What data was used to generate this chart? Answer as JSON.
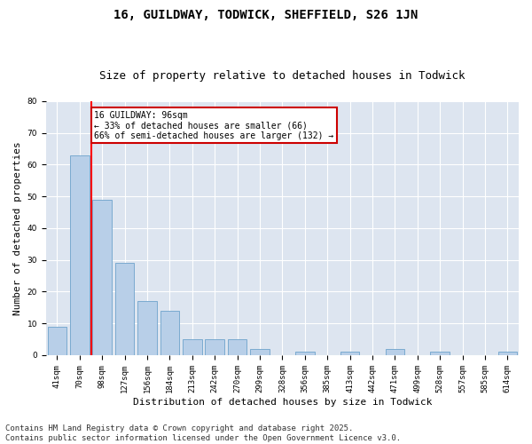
{
  "title": "16, GUILDWAY, TODWICK, SHEFFIELD, S26 1JN",
  "subtitle": "Size of property relative to detached houses in Todwick",
  "xlabel": "Distribution of detached houses by size in Todwick",
  "ylabel": "Number of detached properties",
  "categories": [
    "41sqm",
    "70sqm",
    "98sqm",
    "127sqm",
    "156sqm",
    "184sqm",
    "213sqm",
    "242sqm",
    "270sqm",
    "299sqm",
    "328sqm",
    "356sqm",
    "385sqm",
    "413sqm",
    "442sqm",
    "471sqm",
    "499sqm",
    "528sqm",
    "557sqm",
    "585sqm",
    "614sqm"
  ],
  "values": [
    9,
    63,
    49,
    29,
    17,
    14,
    5,
    5,
    5,
    2,
    0,
    1,
    0,
    1,
    0,
    2,
    0,
    1,
    0,
    0,
    1
  ],
  "bar_color": "#b8cfe8",
  "bar_edge_color": "#7aaad0",
  "red_line_x": 2,
  "annotation_text": "16 GUILDWAY: 96sqm\n← 33% of detached houses are smaller (66)\n66% of semi-detached houses are larger (132) →",
  "annotation_box_color": "#ffffff",
  "annotation_box_edge_color": "#cc0000",
  "ylim": [
    0,
    80
  ],
  "yticks": [
    0,
    10,
    20,
    30,
    40,
    50,
    60,
    70,
    80
  ],
  "background_color": "#dde5f0",
  "grid_color": "#ffffff",
  "fig_background_color": "#ffffff",
  "footer_text": "Contains HM Land Registry data © Crown copyright and database right 2025.\nContains public sector information licensed under the Open Government Licence v3.0.",
  "title_fontsize": 10,
  "subtitle_fontsize": 9,
  "xlabel_fontsize": 8,
  "ylabel_fontsize": 8,
  "footer_fontsize": 6.5,
  "annot_fontsize": 7,
  "tick_fontsize": 6.5
}
